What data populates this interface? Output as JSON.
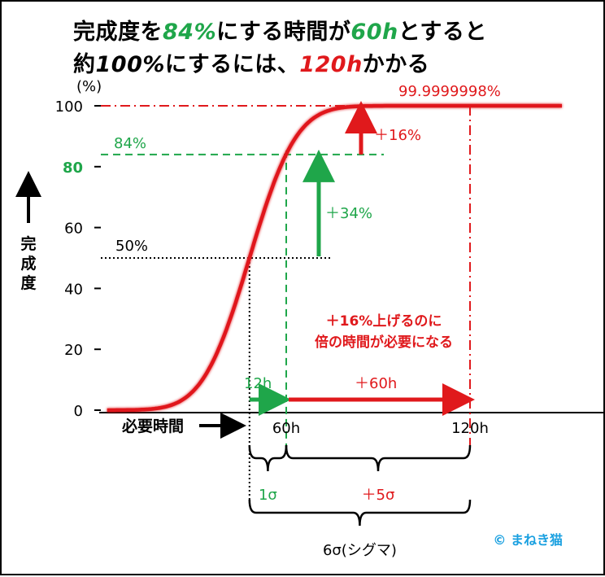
{
  "title": {
    "line1": [
      {
        "text": "完成度を",
        "style": "black"
      },
      {
        "text": "84%",
        "style": "green"
      },
      {
        "text": "にする時間が",
        "style": "black"
      },
      {
        "text": "60h",
        "style": "green"
      },
      {
        "text": "とすると",
        "style": "black"
      }
    ],
    "line2": [
      {
        "text": "約",
        "style": "black"
      },
      {
        "text": "100%",
        "style": "black-italic"
      },
      {
        "text": "にするには、",
        "style": "black"
      },
      {
        "text": "120h",
        "style": "red"
      },
      {
        "text": "かかる",
        "style": "black"
      }
    ]
  },
  "colors": {
    "green": "#1fa64a",
    "red": "#e0191c",
    "black": "#000000"
  },
  "chart_data": {
    "type": "line",
    "curve": "cumulative normal distribution (sigmoid)",
    "mean_h": 48,
    "sigma_h": 12,
    "x_range_h": [
      -12,
      150
    ],
    "ylim": [
      0,
      100
    ],
    "y_unit": "(%)",
    "ylabel": "完成度",
    "xlabel": "必要時間",
    "y_ticks": [
      {
        "value": 0,
        "label": "0",
        "highlight": false
      },
      {
        "value": 20,
        "label": "20",
        "highlight": false
      },
      {
        "value": 40,
        "label": "40",
        "highlight": false
      },
      {
        "value": 60,
        "label": "60",
        "highlight": false
      },
      {
        "value": 80,
        "label": "80",
        "highlight": true
      },
      {
        "value": 100,
        "label": "100",
        "highlight": false
      }
    ],
    "x_ticks": [
      {
        "value": 60,
        "label": "60h"
      },
      {
        "value": 120,
        "label": "120h"
      }
    ],
    "markers": {
      "p50": {
        "x": 48,
        "y": 50,
        "label": "50%"
      },
      "p84": {
        "x": 60,
        "y": 84,
        "label": "84%"
      },
      "p100": {
        "x": 120,
        "y": 100,
        "label": "99.9999998%"
      }
    },
    "arrows": {
      "up34": {
        "from": 50,
        "to": 84,
        "label": "＋34%"
      },
      "up16": {
        "from": 84,
        "to": 100,
        "label": "＋16%"
      },
      "right12": {
        "from": 48,
        "to": 60,
        "label": "12h"
      },
      "right60": {
        "from": 60,
        "to": 120,
        "label": "＋60h"
      }
    },
    "annotation": {
      "line1": "＋16%上げるのに",
      "line2": "倍の時間が必要になる"
    },
    "braces": {
      "one_sigma": "1σ",
      "five_sigma": "＋5σ",
      "six_sigma": "6σ(シグマ)"
    }
  },
  "credit": "© まねき猫"
}
